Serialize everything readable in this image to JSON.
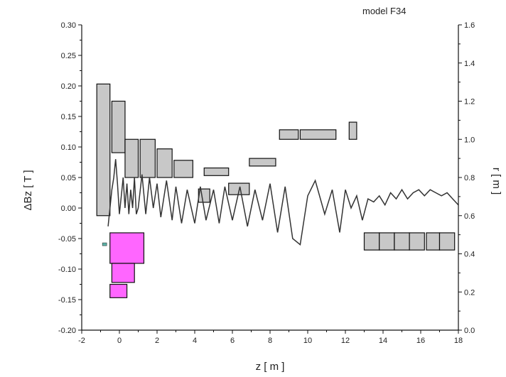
{
  "chart_data": {
    "type": "line",
    "annotation": "model F34",
    "xlabel": "z [ m ]",
    "ylabel_left": "ΔBz [ T ]",
    "ylabel_right": "r [ m ]",
    "xlim": [
      -2,
      18
    ],
    "ylim_left": [
      -0.2,
      0.3
    ],
    "ylim_right": [
      0.0,
      1.6
    ],
    "grid": false,
    "x_ticks": [
      "-2",
      "0",
      "2",
      "4",
      "6",
      "8",
      "10",
      "12",
      "14",
      "16",
      "18"
    ],
    "y_left_ticks": [
      "0.30",
      "0.25",
      "0.20",
      "0.15",
      "0.10",
      "0.05",
      "0.00",
      "-0.05",
      "-0.10",
      "-0.15",
      "-0.20"
    ],
    "y_right_ticks": [
      "1.6",
      "1.4",
      "1.2",
      "1.0",
      "0.8",
      "0.6",
      "0.4",
      "0.2",
      "0.0"
    ],
    "series": [
      {
        "axis": "left",
        "x": [
          -0.6,
          -0.4,
          -0.3,
          -0.2,
          -0.1,
          0.0,
          0.1,
          0.2,
          0.3,
          0.4,
          0.5,
          0.6,
          0.7,
          0.8,
          0.9,
          1.0,
          1.2,
          1.4,
          1.6,
          1.8,
          2.0,
          2.2,
          2.5,
          2.8,
          3.0,
          3.3,
          3.6,
          4.0,
          4.3,
          4.6,
          5.0,
          5.3,
          5.6,
          6.0,
          6.4,
          6.8,
          7.2,
          7.6,
          8.0,
          8.4,
          8.8,
          9.2,
          9.6,
          10.0,
          10.4,
          10.9,
          11.3,
          11.7,
          12.0,
          12.3,
          12.6,
          12.9,
          13.2,
          13.5,
          13.8,
          14.1,
          14.4,
          14.7,
          15.0,
          15.3,
          15.6,
          15.9,
          16.2,
          16.5,
          16.8,
          17.1,
          17.4,
          17.7,
          18.0
        ],
        "y": [
          -0.03,
          0.03,
          0.05,
          0.08,
          0.04,
          -0.01,
          0.02,
          0.05,
          0.0,
          0.04,
          -0.01,
          0.03,
          0.0,
          0.05,
          -0.01,
          0.0,
          0.055,
          -0.01,
          0.05,
          0.0,
          0.04,
          -0.015,
          0.045,
          -0.02,
          0.035,
          -0.025,
          0.03,
          -0.025,
          0.035,
          -0.02,
          0.03,
          -0.025,
          0.035,
          -0.02,
          0.035,
          -0.03,
          0.03,
          -0.02,
          0.04,
          -0.04,
          0.035,
          -0.05,
          -0.06,
          0.02,
          0.045,
          -0.01,
          0.03,
          -0.04,
          0.03,
          0.0,
          0.02,
          -0.02,
          0.015,
          0.01,
          0.02,
          0.005,
          0.025,
          0.015,
          0.03,
          0.015,
          0.025,
          0.03,
          0.02,
          0.03,
          0.025,
          0.02,
          0.025,
          0.015,
          0.005
        ]
      }
    ],
    "coils": [
      {
        "group": "gray",
        "z": [
          -1.2,
          -0.5
        ],
        "r": [
          0.6,
          1.29
        ]
      },
      {
        "group": "gray",
        "z": [
          -0.4,
          0.3
        ],
        "r": [
          0.93,
          1.2
        ]
      },
      {
        "group": "gray",
        "z": [
          0.3,
          1.0
        ],
        "r": [
          0.8,
          1.0
        ]
      },
      {
        "group": "gray",
        "z": [
          1.1,
          1.9
        ],
        "r": [
          0.8,
          1.0
        ]
      },
      {
        "group": "gray",
        "z": [
          2.0,
          2.8
        ],
        "r": [
          0.8,
          0.95
        ]
      },
      {
        "group": "gray",
        "z": [
          2.9,
          3.9
        ],
        "r": [
          0.8,
          0.89
        ]
      },
      {
        "group": "gray",
        "z": [
          4.2,
          4.8
        ],
        "r": [
          0.67,
          0.74
        ]
      },
      {
        "group": "gray",
        "z": [
          4.5,
          5.8
        ],
        "r": [
          0.81,
          0.85
        ]
      },
      {
        "group": "gray",
        "z": [
          5.8,
          6.9
        ],
        "r": [
          0.71,
          0.77
        ]
      },
      {
        "group": "gray",
        "z": [
          6.9,
          8.3
        ],
        "r": [
          0.86,
          0.9
        ]
      },
      {
        "group": "gray",
        "z": [
          8.5,
          9.5
        ],
        "r": [
          1.0,
          1.05
        ]
      },
      {
        "group": "gray",
        "z": [
          9.6,
          11.5
        ],
        "r": [
          1.0,
          1.05
        ]
      },
      {
        "group": "gray",
        "z": [
          12.2,
          12.6
        ],
        "r": [
          1.0,
          1.09
        ]
      },
      {
        "group": "gray",
        "z": [
          13.0,
          13.8
        ],
        "r": [
          0.42,
          0.51
        ]
      },
      {
        "group": "gray",
        "z": [
          13.8,
          14.6
        ],
        "r": [
          0.42,
          0.51
        ]
      },
      {
        "group": "gray",
        "z": [
          14.6,
          15.4
        ],
        "r": [
          0.42,
          0.51
        ]
      },
      {
        "group": "gray",
        "z": [
          15.4,
          16.2
        ],
        "r": [
          0.42,
          0.51
        ]
      },
      {
        "group": "gray",
        "z": [
          16.3,
          17.0
        ],
        "r": [
          0.42,
          0.51
        ]
      },
      {
        "group": "gray",
        "z": [
          17.0,
          17.8
        ],
        "r": [
          0.42,
          0.51
        ]
      },
      {
        "group": "magenta",
        "z": [
          -0.5,
          1.3
        ],
        "r": [
          0.35,
          0.51
        ]
      },
      {
        "group": "magenta",
        "z": [
          -0.4,
          0.8
        ],
        "r": [
          0.25,
          0.35
        ]
      },
      {
        "group": "magenta",
        "z": [
          -0.5,
          0.4
        ],
        "r": [
          0.17,
          0.24
        ]
      }
    ],
    "colors": {
      "gray_coil": "#c8c8c8",
      "magenta_coil": "#ff66ff",
      "field_line": "#333333",
      "teal_marker": "#5ab4a8"
    }
  }
}
